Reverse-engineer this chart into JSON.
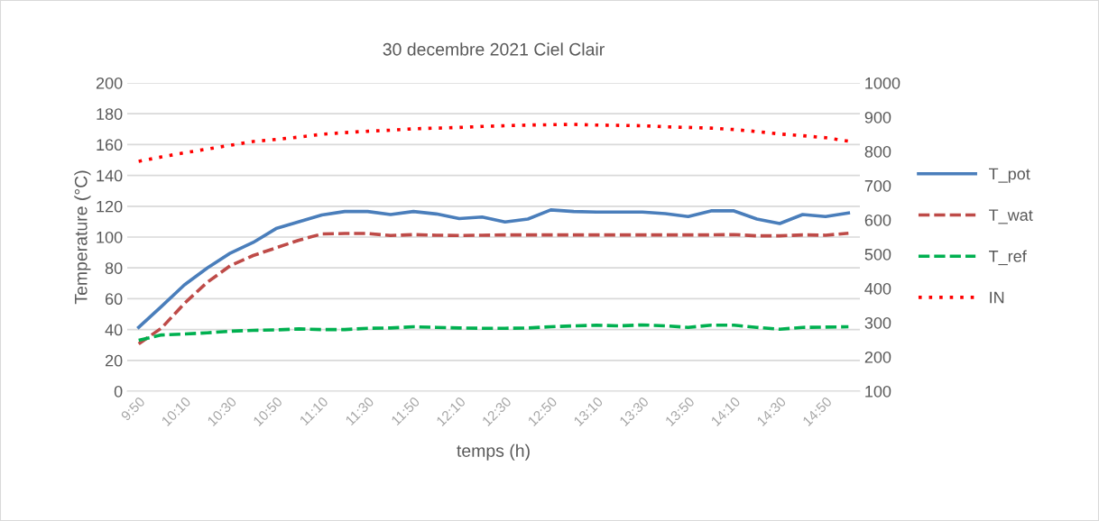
{
  "chart_data": {
    "type": "line",
    "title": "30 decembre 2021 Ciel Clair",
    "xlabel": "temps (h)",
    "ylabel": "Temperature (°C)",
    "categories": [
      "9:50",
      null,
      "10:10",
      null,
      "10:30",
      null,
      "10:50",
      null,
      "11:10",
      null,
      "11:30",
      null,
      "11:50",
      null,
      "12:10",
      null,
      "12:30",
      null,
      "12:50",
      null,
      "13:10",
      null,
      "13:30",
      null,
      "13:50",
      null,
      "14:10",
      null,
      "14:30",
      null,
      "14:50",
      null
    ],
    "series": [
      {
        "name": "T_pot",
        "color": "#4a7ebb",
        "line_style": "solid",
        "values": [
          41.4,
          55,
          69,
          80,
          89.6,
          96.5,
          105.5,
          110,
          114.3,
          116.6,
          116.6,
          114.6,
          116.6,
          115,
          112,
          113,
          109.8,
          111.7,
          117.6,
          116.6,
          116.2,
          116.2,
          116.2,
          115.2,
          113.3,
          117,
          117,
          111.7,
          108.8,
          114.6,
          113.3,
          115.6
        ]
      },
      {
        "name": "T_wat",
        "color": "#be4b48",
        "line_style": "dashed",
        "values": [
          30.7,
          41,
          57,
          70.7,
          81.4,
          88,
          93,
          98,
          102,
          102.3,
          102.3,
          101,
          101.6,
          101.2,
          101,
          101.2,
          101.4,
          101.4,
          101.4,
          101.4,
          101.4,
          101.4,
          101.4,
          101.4,
          101.4,
          101.4,
          101.6,
          100.8,
          100.8,
          101.4,
          101.2,
          102.5
        ]
      },
      {
        "name": "T_ref",
        "color": "#00b050",
        "line_style": "dashed",
        "values": [
          33,
          36.5,
          37.1,
          37.9,
          38.9,
          39.5,
          39.8,
          40.4,
          40,
          40,
          40.8,
          41,
          41.8,
          41.4,
          41,
          40.8,
          40.8,
          41,
          41.8,
          42.4,
          42.8,
          42.4,
          43,
          42.4,
          41.4,
          42.8,
          42.8,
          41.4,
          40.2,
          41.4,
          41.6,
          41.8
        ]
      },
      {
        "name": "IN",
        "color": "#ff0000",
        "line_style": "dotted",
        "axis": "y2",
        "values": [
          771,
          784,
          796,
          807,
          818,
          829,
          835,
          842,
          850,
          855,
          859,
          862,
          866,
          868,
          870,
          873,
          875,
          877,
          878,
          879,
          877,
          876,
          875,
          872,
          870,
          868,
          864,
          858,
          851,
          846,
          840,
          830
        ]
      }
    ],
    "ylim": [
      0,
      200
    ],
    "yticks": [
      0,
      20,
      40,
      60,
      80,
      100,
      120,
      140,
      160,
      180,
      200
    ],
    "y2lim": [
      100,
      1000
    ],
    "y2ticks": [
      100,
      200,
      300,
      400,
      500,
      600,
      700,
      800,
      900,
      1000
    ],
    "grid": "y",
    "legend": "right",
    "marker": "none"
  }
}
